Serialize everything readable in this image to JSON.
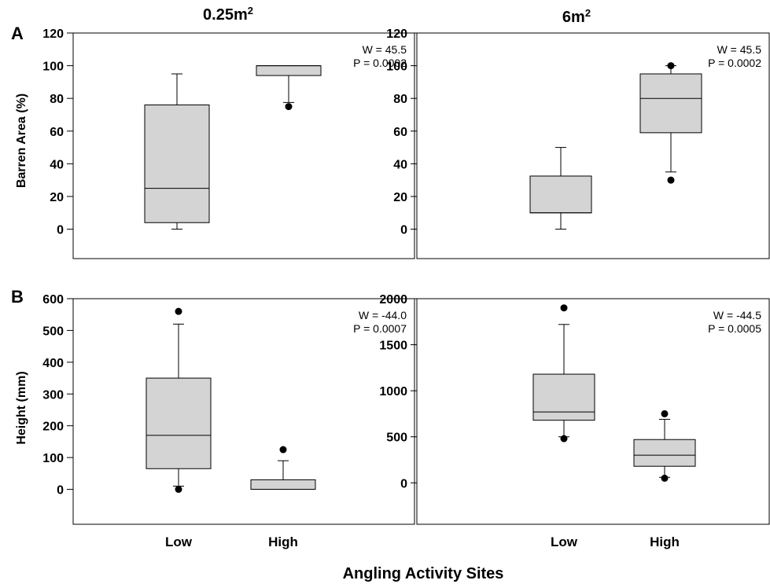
{
  "figure": {
    "column_titles": [
      {
        "base": "0.25m",
        "sup": "2"
      },
      {
        "base": "6m",
        "sup": "2"
      }
    ],
    "row_letters": [
      "A",
      "B"
    ],
    "row_ylabels": [
      "Barren Area (%)",
      "Height (mm)"
    ],
    "x_title": "Angling Activity Sites"
  },
  "chart_data": [
    {
      "type": "box",
      "row": 0,
      "col": 0,
      "categories": [
        "Low",
        "High"
      ],
      "ylabel": "Barren Area (%)",
      "ylim": [
        -18,
        120
      ],
      "yticks": [
        0,
        20,
        40,
        60,
        80,
        100,
        120
      ],
      "show_category_labels": false,
      "annotation": [
        "W = 45.5",
        "P = 0.0002"
      ],
      "boxes": [
        {
          "category": "Low",
          "q1": 4,
          "median": 25,
          "q3": 76,
          "whisker_low": 0,
          "whisker_high": 95,
          "outliers": []
        },
        {
          "category": "High",
          "q1": 94,
          "median": 100,
          "q3": 100,
          "whisker_low": 77.5,
          "whisker_high": 100,
          "outliers": [
            75
          ]
        }
      ]
    },
    {
      "type": "box",
      "row": 0,
      "col": 1,
      "categories": [
        "Low",
        "High"
      ],
      "ylim": [
        -18,
        120
      ],
      "yticks": [
        0,
        20,
        40,
        60,
        80,
        100,
        120
      ],
      "show_category_labels": false,
      "annotation": [
        "W = 45.5",
        "P = 0.0002"
      ],
      "boxes": [
        {
          "category": "Low",
          "q1": 10,
          "median": 10,
          "q3": 32.5,
          "whisker_low": 0,
          "whisker_high": 50,
          "outliers": []
        },
        {
          "category": "High",
          "q1": 59,
          "median": 80,
          "q3": 95,
          "whisker_low": 35,
          "whisker_high": 100,
          "outliers": [
            30,
            100
          ]
        }
      ]
    },
    {
      "type": "box",
      "row": 1,
      "col": 0,
      "categories": [
        "Low",
        "High"
      ],
      "ylabel": "Height (mm)",
      "ylim": [
        -110,
        600
      ],
      "yticks": [
        0,
        100,
        200,
        300,
        400,
        500,
        600
      ],
      "show_category_labels": true,
      "annotation": [
        "W = -44.0",
        "P = 0.0007"
      ],
      "boxes": [
        {
          "category": "Low",
          "q1": 65,
          "median": 170,
          "q3": 350,
          "whisker_low": 10,
          "whisker_high": 520,
          "outliers": [
            0,
            560
          ]
        },
        {
          "category": "High",
          "q1": 0,
          "median": 0,
          "q3": 30,
          "whisker_low": 0,
          "whisker_high": 90,
          "outliers": [
            125
          ]
        }
      ]
    },
    {
      "type": "box",
      "row": 1,
      "col": 1,
      "categories": [
        "Low",
        "High"
      ],
      "ylim": [
        -450,
        2000
      ],
      "yticks": [
        0,
        500,
        1000,
        1500,
        2000
      ],
      "show_category_labels": true,
      "annotation": [
        "W = -44.5",
        "P = 0.0005"
      ],
      "boxes": [
        {
          "category": "Low",
          "q1": 680,
          "median": 770,
          "q3": 1180,
          "whisker_low": 500,
          "whisker_high": 1720,
          "outliers": [
            480,
            1900
          ]
        },
        {
          "category": "High",
          "q1": 180,
          "median": 300,
          "q3": 470,
          "whisker_low": 60,
          "whisker_high": 690,
          "outliers": [
            50,
            750
          ]
        }
      ]
    }
  ]
}
